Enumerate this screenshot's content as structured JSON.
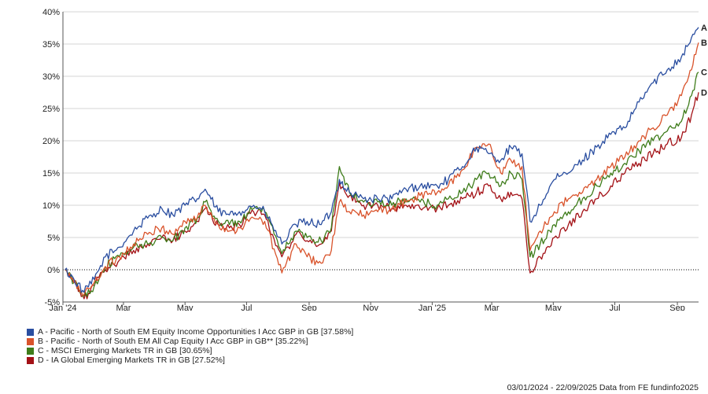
{
  "chart_data": {
    "type": "line",
    "title": "",
    "xlabel": "",
    "ylabel": "",
    "ylim": [
      -5,
      40
    ],
    "y_ticks": [
      "-5%",
      "0%",
      "5%",
      "10%",
      "15%",
      "20%",
      "25%",
      "30%",
      "35%",
      "40%"
    ],
    "y_tick_values": [
      -5,
      0,
      5,
      10,
      15,
      20,
      25,
      30,
      35,
      40
    ],
    "x_range": [
      "2024-01-03",
      "2025-09-22"
    ],
    "x_ticks": [
      {
        "date": "2024-01-01",
        "label": "Jan '24"
      },
      {
        "date": "2024-03-01",
        "label": "Mar"
      },
      {
        "date": "2024-05-01",
        "label": "May"
      },
      {
        "date": "2024-07-01",
        "label": "Jul"
      },
      {
        "date": "2024-09-01",
        "label": "Sep"
      },
      {
        "date": "2024-11-01",
        "label": "Nov"
      },
      {
        "date": "2025-01-01",
        "label": "Jan '25"
      },
      {
        "date": "2025-03-01",
        "label": "Mar"
      },
      {
        "date": "2025-05-01",
        "label": "May"
      },
      {
        "date": "2025-07-01",
        "label": "Jul"
      },
      {
        "date": "2025-09-01",
        "label": "Sep"
      }
    ],
    "grid": "horizontal",
    "zero_line": "dotted",
    "legend_position": "bottom-left",
    "series": [
      {
        "name": "A - Pacific - North of South EM Equity Income Opportunities I Acc GBP in GB [37.58%]",
        "end_label": "A",
        "color": "#2a4ea0",
        "points": [
          [
            "2024-01-03",
            0
          ],
          [
            "2024-01-12",
            -1.5
          ],
          [
            "2024-01-22",
            -3.5
          ],
          [
            "2024-02-01",
            -1.5
          ],
          [
            "2024-02-12",
            2
          ],
          [
            "2024-02-26",
            3.5
          ],
          [
            "2024-03-11",
            6
          ],
          [
            "2024-03-25",
            8
          ],
          [
            "2024-04-08",
            9.5
          ],
          [
            "2024-04-19",
            8.5
          ],
          [
            "2024-05-01",
            10
          ],
          [
            "2024-05-13",
            11
          ],
          [
            "2024-05-21",
            12.5
          ],
          [
            "2024-06-03",
            9
          ],
          [
            "2024-06-14",
            8.5
          ],
          [
            "2024-06-24",
            9
          ],
          [
            "2024-07-08",
            10
          ],
          [
            "2024-07-19",
            9
          ],
          [
            "2024-08-05",
            4
          ],
          [
            "2024-08-19",
            7
          ],
          [
            "2024-08-30",
            7.5
          ],
          [
            "2024-09-13",
            7
          ],
          [
            "2024-09-23",
            9
          ],
          [
            "2024-10-01",
            14
          ],
          [
            "2024-10-11",
            12
          ],
          [
            "2024-10-25",
            11
          ],
          [
            "2024-11-08",
            11
          ],
          [
            "2024-11-22",
            11
          ],
          [
            "2024-12-06",
            12.5
          ],
          [
            "2024-12-20",
            13
          ],
          [
            "2025-01-06",
            13
          ],
          [
            "2025-01-17",
            14
          ],
          [
            "2025-01-31",
            16
          ],
          [
            "2025-02-14",
            19
          ],
          [
            "2025-02-26",
            18
          ],
          [
            "2025-03-10",
            17
          ],
          [
            "2025-03-20",
            19
          ],
          [
            "2025-03-31",
            18
          ],
          [
            "2025-04-08",
            7.5
          ],
          [
            "2025-04-18",
            10
          ],
          [
            "2025-05-02",
            14
          ],
          [
            "2025-05-16",
            15
          ],
          [
            "2025-05-30",
            17
          ],
          [
            "2025-06-13",
            19
          ],
          [
            "2025-06-27",
            21
          ],
          [
            "2025-07-11",
            22
          ],
          [
            "2025-07-25",
            26
          ],
          [
            "2025-08-08",
            29
          ],
          [
            "2025-08-22",
            31
          ],
          [
            "2025-09-05",
            33
          ],
          [
            "2025-09-15",
            36
          ],
          [
            "2025-09-22",
            37.58
          ]
        ]
      },
      {
        "name": "B - Pacific - North of South EM All Cap Equity I Acc GBP in GB** [35.22%]",
        "end_label": "B",
        "color": "#d9532b",
        "points": [
          [
            "2024-01-03",
            0
          ],
          [
            "2024-01-12",
            -2
          ],
          [
            "2024-01-22",
            -3.8
          ],
          [
            "2024-02-01",
            -2
          ],
          [
            "2024-02-12",
            0.5
          ],
          [
            "2024-02-26",
            2
          ],
          [
            "2024-03-11",
            4
          ],
          [
            "2024-03-25",
            5.5
          ],
          [
            "2024-04-08",
            6.5
          ],
          [
            "2024-04-19",
            5.5
          ],
          [
            "2024-05-01",
            7.5
          ],
          [
            "2024-05-13",
            8
          ],
          [
            "2024-05-21",
            10
          ],
          [
            "2024-06-03",
            7
          ],
          [
            "2024-06-14",
            6
          ],
          [
            "2024-06-24",
            6.5
          ],
          [
            "2024-07-08",
            8
          ],
          [
            "2024-07-19",
            7.5
          ],
          [
            "2024-08-05",
            -0.5
          ],
          [
            "2024-08-19",
            4
          ],
          [
            "2024-08-30",
            2
          ],
          [
            "2024-09-13",
            1
          ],
          [
            "2024-09-23",
            3
          ],
          [
            "2024-10-01",
            10.5
          ],
          [
            "2024-10-11",
            9
          ],
          [
            "2024-10-25",
            8.5
          ],
          [
            "2024-11-08",
            9
          ],
          [
            "2024-11-22",
            9.5
          ],
          [
            "2024-12-06",
            10.5
          ],
          [
            "2024-12-20",
            11.5
          ],
          [
            "2025-01-06",
            12
          ],
          [
            "2025-01-17",
            13
          ],
          [
            "2025-01-31",
            15.5
          ],
          [
            "2025-02-14",
            19
          ],
          [
            "2025-02-26",
            19.5
          ],
          [
            "2025-03-10",
            15
          ],
          [
            "2025-03-20",
            17
          ],
          [
            "2025-03-31",
            16
          ],
          [
            "2025-04-08",
            3
          ],
          [
            "2025-04-18",
            6
          ],
          [
            "2025-05-02",
            9
          ],
          [
            "2025-05-16",
            11
          ],
          [
            "2025-05-30",
            12
          ],
          [
            "2025-06-13",
            14
          ],
          [
            "2025-06-27",
            16
          ],
          [
            "2025-07-11",
            17.5
          ],
          [
            "2025-07-25",
            20
          ],
          [
            "2025-08-08",
            22
          ],
          [
            "2025-08-22",
            24
          ],
          [
            "2025-09-05",
            27
          ],
          [
            "2025-09-15",
            31
          ],
          [
            "2025-09-22",
            35.22
          ]
        ]
      },
      {
        "name": "C - MSCI Emerging Markets TR in GB [30.65%]",
        "end_label": "C",
        "color": "#3e7c1a",
        "points": [
          [
            "2024-01-03",
            0
          ],
          [
            "2024-01-12",
            -2
          ],
          [
            "2024-01-22",
            -4
          ],
          [
            "2024-02-01",
            -2.5
          ],
          [
            "2024-02-12",
            0.5
          ],
          [
            "2024-02-26",
            2
          ],
          [
            "2024-03-11",
            3.5
          ],
          [
            "2024-03-25",
            4
          ],
          [
            "2024-04-08",
            5
          ],
          [
            "2024-04-19",
            4.5
          ],
          [
            "2024-05-01",
            6.5
          ],
          [
            "2024-05-13",
            8
          ],
          [
            "2024-05-21",
            10.5
          ],
          [
            "2024-06-03",
            7.5
          ],
          [
            "2024-06-14",
            7
          ],
          [
            "2024-06-24",
            7.5
          ],
          [
            "2024-07-08",
            9.5
          ],
          [
            "2024-07-19",
            9
          ],
          [
            "2024-08-05",
            2.5
          ],
          [
            "2024-08-19",
            6
          ],
          [
            "2024-08-30",
            5
          ],
          [
            "2024-09-13",
            4.5
          ],
          [
            "2024-09-23",
            6.5
          ],
          [
            "2024-10-01",
            16
          ],
          [
            "2024-10-11",
            12
          ],
          [
            "2024-10-25",
            10.5
          ],
          [
            "2024-11-08",
            10.5
          ],
          [
            "2024-11-22",
            10
          ],
          [
            "2024-12-06",
            11
          ],
          [
            "2024-12-20",
            10.5
          ],
          [
            "2025-01-06",
            10
          ],
          [
            "2025-01-17",
            11
          ],
          [
            "2025-01-31",
            12
          ],
          [
            "2025-02-14",
            14
          ],
          [
            "2025-02-26",
            15
          ],
          [
            "2025-03-10",
            13
          ],
          [
            "2025-03-20",
            15
          ],
          [
            "2025-03-31",
            14
          ],
          [
            "2025-04-08",
            2
          ],
          [
            "2025-04-18",
            4
          ],
          [
            "2025-05-02",
            7
          ],
          [
            "2025-05-16",
            9
          ],
          [
            "2025-05-30",
            11
          ],
          [
            "2025-06-13",
            13
          ],
          [
            "2025-06-27",
            15
          ],
          [
            "2025-07-11",
            16.5
          ],
          [
            "2025-07-25",
            18.5
          ],
          [
            "2025-08-08",
            20
          ],
          [
            "2025-08-22",
            21.5
          ],
          [
            "2025-09-05",
            23
          ],
          [
            "2025-09-15",
            27
          ],
          [
            "2025-09-22",
            30.65
          ]
        ]
      },
      {
        "name": "D - IA Global Emerging Markets TR in GB [27.52%]",
        "end_label": "D",
        "color": "#a31116",
        "points": [
          [
            "2024-01-03",
            0
          ],
          [
            "2024-01-12",
            -2
          ],
          [
            "2024-01-22",
            -4.5
          ],
          [
            "2024-02-01",
            -2.5
          ],
          [
            "2024-02-12",
            0
          ],
          [
            "2024-02-26",
            1.5
          ],
          [
            "2024-03-11",
            3
          ],
          [
            "2024-03-25",
            4
          ],
          [
            "2024-04-08",
            5
          ],
          [
            "2024-04-19",
            4.5
          ],
          [
            "2024-05-01",
            6
          ],
          [
            "2024-05-13",
            7.5
          ],
          [
            "2024-05-21",
            9.5
          ],
          [
            "2024-06-03",
            7
          ],
          [
            "2024-06-14",
            6.5
          ],
          [
            "2024-06-24",
            7
          ],
          [
            "2024-07-08",
            9
          ],
          [
            "2024-07-19",
            8.5
          ],
          [
            "2024-08-05",
            2
          ],
          [
            "2024-08-19",
            5.5
          ],
          [
            "2024-08-30",
            4.5
          ],
          [
            "2024-09-13",
            4
          ],
          [
            "2024-09-23",
            6
          ],
          [
            "2024-10-01",
            13.5
          ],
          [
            "2024-10-11",
            11.5
          ],
          [
            "2024-10-25",
            10
          ],
          [
            "2024-11-08",
            10
          ],
          [
            "2024-11-22",
            9.5
          ],
          [
            "2024-12-06",
            10
          ],
          [
            "2024-12-20",
            9.5
          ],
          [
            "2025-01-06",
            9.5
          ],
          [
            "2025-01-17",
            10
          ],
          [
            "2025-01-31",
            11
          ],
          [
            "2025-02-14",
            12
          ],
          [
            "2025-02-26",
            13
          ],
          [
            "2025-03-10",
            11
          ],
          [
            "2025-03-20",
            12
          ],
          [
            "2025-03-31",
            11
          ],
          [
            "2025-04-08",
            -0.5
          ],
          [
            "2025-04-18",
            2
          ],
          [
            "2025-05-02",
            5
          ],
          [
            "2025-05-16",
            7
          ],
          [
            "2025-05-30",
            9
          ],
          [
            "2025-06-13",
            11
          ],
          [
            "2025-06-27",
            13
          ],
          [
            "2025-07-11",
            15
          ],
          [
            "2025-07-25",
            16.5
          ],
          [
            "2025-08-08",
            18
          ],
          [
            "2025-08-22",
            19.5
          ],
          [
            "2025-09-05",
            20.5
          ],
          [
            "2025-09-15",
            24
          ],
          [
            "2025-09-22",
            27.52
          ]
        ]
      }
    ]
  },
  "legend": {
    "items": [
      {
        "label": "A - Pacific - North of South EM Equity Income Opportunities I Acc GBP in GB [37.58%]",
        "color": "#2a4ea0"
      },
      {
        "label": "B - Pacific - North of South EM All Cap Equity I Acc GBP in GB** [35.22%]",
        "color": "#d9532b"
      },
      {
        "label": "C - MSCI Emerging Markets TR in GB [30.65%]",
        "color": "#3e7c1a"
      },
      {
        "label": "D - IA Global Emerging Markets TR in GB [27.52%]",
        "color": "#a31116"
      }
    ]
  },
  "footer": {
    "text": "03/01/2024 - 22/09/2025 Data from FE fundinfo2025"
  }
}
